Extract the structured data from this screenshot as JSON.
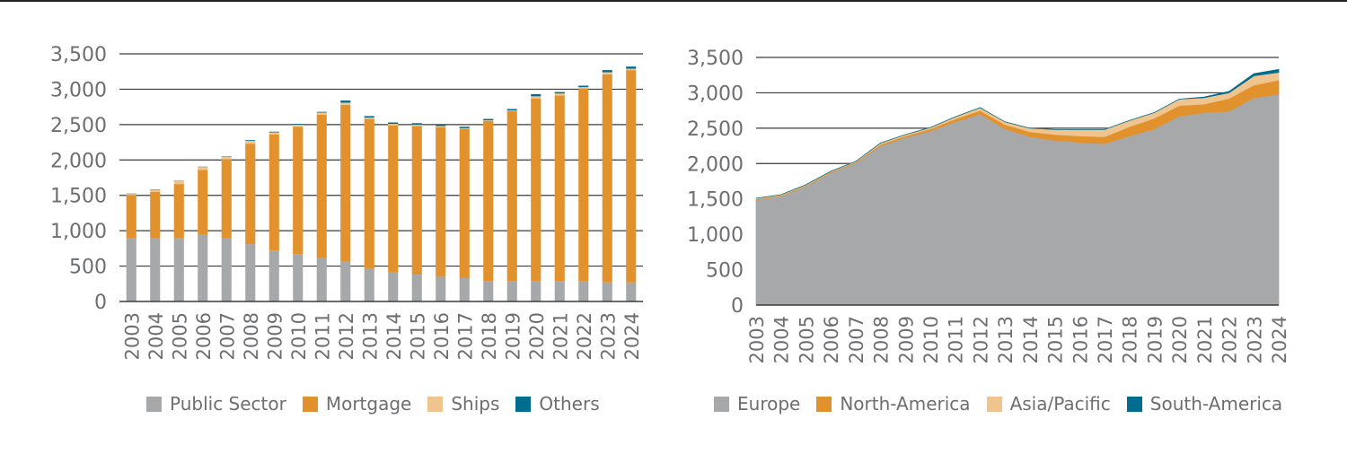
{
  "colors": {
    "public_sector": "#a7a8aa",
    "mortgage": "#e2922c",
    "ships": "#f0c48e",
    "others": "#006d8f",
    "axis_text": "#6d6e71",
    "gridline": "#3c3c3c"
  },
  "chart_data": [
    {
      "type": "bar",
      "stacked": true,
      "title": "",
      "xlabel": "",
      "ylabel": "",
      "ylim": [
        0,
        3500
      ],
      "yticks": [
        "0",
        "500",
        "1,000",
        "1,500",
        "2,000",
        "2,500",
        "3,000",
        "3,500"
      ],
      "grid": true,
      "legend_position": "bottom",
      "categories": [
        "2003",
        "2004",
        "2005",
        "2006",
        "2007",
        "2008",
        "2009",
        "2010",
        "2011",
        "2012",
        "2013",
        "2014",
        "2015",
        "2016",
        "2017",
        "2018",
        "2019",
        "2020",
        "2021",
        "2022",
        "2023",
        "2024"
      ],
      "series": [
        {
          "name": "Public Sector",
          "color_key": "public_sector",
          "values": [
            900,
            890,
            890,
            940,
            900,
            810,
            720,
            670,
            610,
            560,
            470,
            410,
            380,
            350,
            330,
            290,
            290,
            290,
            290,
            290,
            270,
            270
          ]
        },
        {
          "name": "Mortgage",
          "color_key": "mortgage",
          "values": [
            600,
            660,
            770,
            920,
            1110,
            1420,
            1640,
            1800,
            2030,
            2220,
            2110,
            2080,
            2100,
            2110,
            2110,
            2260,
            2400,
            2580,
            2620,
            2720,
            2940,
            3000
          ]
        },
        {
          "name": "Ships",
          "color_key": "ships",
          "values": [
            20,
            30,
            40,
            40,
            40,
            40,
            30,
            30,
            30,
            30,
            20,
            20,
            20,
            20,
            10,
            10,
            10,
            30,
            30,
            20,
            30,
            20
          ]
        },
        {
          "name": "Others",
          "color_key": "others",
          "values": [
            5,
            5,
            5,
            5,
            5,
            10,
            10,
            10,
            10,
            30,
            20,
            20,
            20,
            20,
            20,
            20,
            20,
            30,
            20,
            20,
            30,
            30
          ]
        }
      ]
    },
    {
      "type": "area",
      "stacked": true,
      "title": "",
      "xlabel": "",
      "ylabel": "",
      "ylim": [
        0,
        3500
      ],
      "yticks": [
        "0",
        "500",
        "1,000",
        "1,500",
        "2,000",
        "2,500",
        "3,000",
        "3,500"
      ],
      "grid": true,
      "legend_position": "bottom",
      "categories": [
        "2003",
        "2004",
        "2005",
        "2006",
        "2007",
        "2008",
        "2009",
        "2010",
        "2011",
        "2012",
        "2013",
        "2014",
        "2015",
        "2016",
        "2017",
        "2018",
        "2019",
        "2020",
        "2021",
        "2022",
        "2023",
        "2024"
      ],
      "series": [
        {
          "name": "Europe",
          "color_key": "public_sector",
          "values": [
            1490,
            1540,
            1680,
            1870,
            2010,
            2250,
            2370,
            2460,
            2590,
            2700,
            2490,
            2380,
            2330,
            2300,
            2280,
            2390,
            2490,
            2670,
            2720,
            2740,
            2930,
            2980
          ]
        },
        {
          "name": "North-America",
          "color_key": "mortgage",
          "values": [
            10,
            10,
            10,
            10,
            10,
            20,
            20,
            30,
            40,
            50,
            60,
            70,
            80,
            90,
            100,
            130,
            150,
            150,
            120,
            180,
            180,
            200
          ]
        },
        {
          "name": "Asia/Pacific",
          "color_key": "ships",
          "values": [
            10,
            10,
            10,
            10,
            10,
            20,
            20,
            20,
            30,
            40,
            40,
            50,
            70,
            90,
            100,
            90,
            80,
            90,
            90,
            80,
            130,
            110
          ]
        },
        {
          "name": "South-America",
          "color_key": "others",
          "values": [
            0,
            0,
            0,
            0,
            0,
            0,
            0,
            0,
            0,
            0,
            0,
            0,
            0,
            0,
            0,
            0,
            0,
            0,
            10,
            20,
            30,
            40
          ]
        }
      ]
    }
  ]
}
